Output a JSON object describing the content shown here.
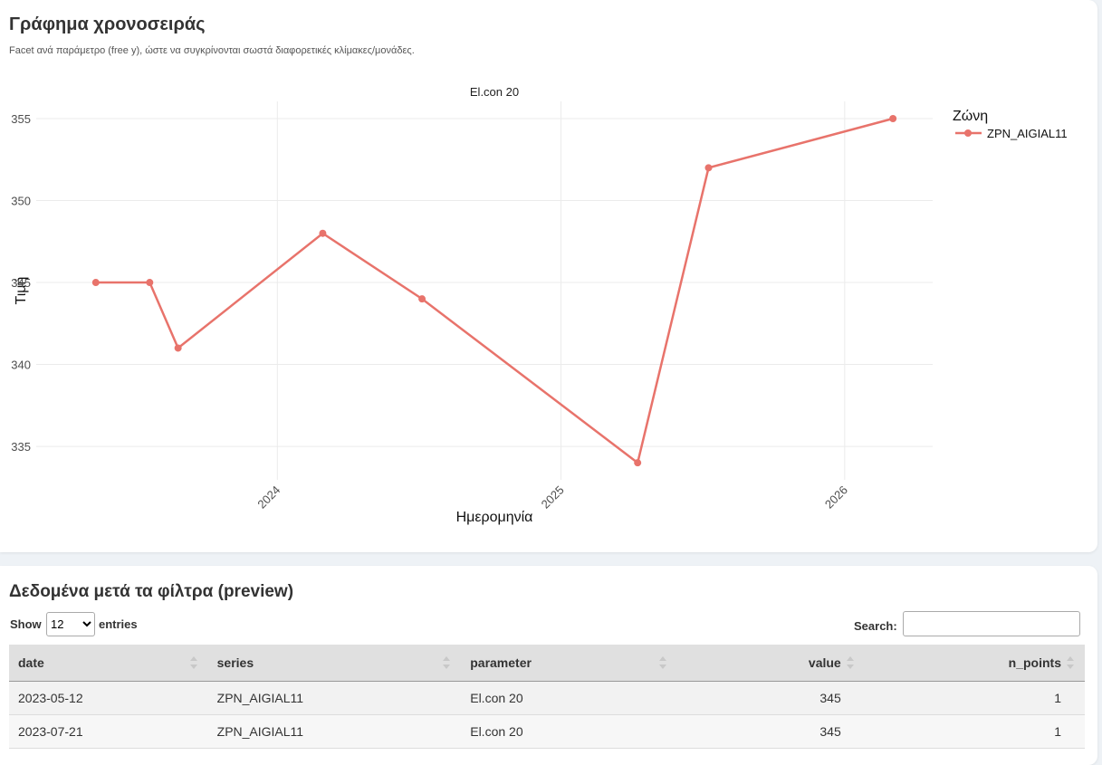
{
  "header": {
    "title": "Γράφημα χρονοσειράς",
    "subtitle": "Facet ανά παράμετρο (free y), ώστε να συγκρίνονται σωστά διαφορετικές κλίμακες/μονάδες."
  },
  "chart_data": {
    "type": "line",
    "title": "El.con 20",
    "x_label": "Ημερομηνία",
    "y_label": "Τιμή",
    "x": [
      2023.36,
      2023.55,
      2023.65,
      2024.16,
      2024.51,
      2025.27,
      2025.52,
      2026.17
    ],
    "series": [
      {
        "name": "ZPN_AIGIAL11",
        "color": "#e8736b",
        "values": [
          345,
          345,
          341,
          348,
          344,
          334,
          352,
          355
        ]
      }
    ],
    "xlim": [
      2023.15,
      2026.31
    ],
    "ylim": [
      332.96,
      356.05
    ],
    "xticks": [
      2024,
      2025,
      2026
    ],
    "yticks": [
      335,
      340,
      345,
      350,
      355
    ],
    "grid": true,
    "legend_title": "Ζώνη",
    "legend": "right"
  },
  "table": {
    "title": "Δεδομένα μετά τα φίλτρα (preview)",
    "show_label": "Show",
    "page_length": "12",
    "entries_label": "entries",
    "search_label": "Search:",
    "columns": [
      "date",
      "series",
      "parameter",
      "value",
      "n_points"
    ],
    "rows": [
      [
        "2023-05-12",
        "ZPN_AIGIAL11",
        "El.con 20",
        "345",
        "1"
      ],
      [
        "2023-07-21",
        "ZPN_AIGIAL11",
        "El.con 20",
        "345",
        "1"
      ]
    ]
  }
}
